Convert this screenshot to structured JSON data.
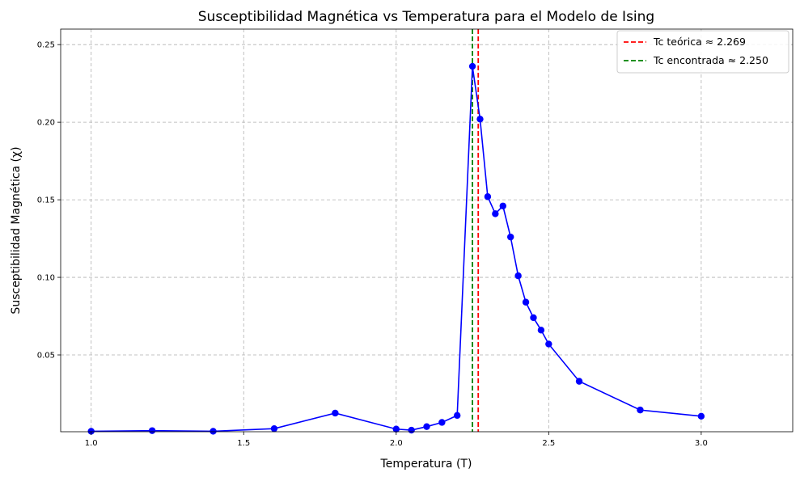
{
  "chart_data": {
    "type": "line",
    "title": "Susceptibilidad Magnética vs Temperatura para el Modelo de Ising",
    "xlabel": "Temperatura (T)",
    "ylabel": "Susceptibilidad Magnética (χ)",
    "xlim": [
      0.9,
      3.3
    ],
    "ylim": [
      0.0005,
      0.26
    ],
    "xticks": [
      1.0,
      1.5,
      2.0,
      2.5,
      3.0
    ],
    "xtick_labels": [
      "1.0",
      "1.5",
      "2.0",
      "2.5",
      "3.0"
    ],
    "yticks": [
      0.05,
      0.1,
      0.15,
      0.2,
      0.25
    ],
    "ytick_labels": [
      "0.05",
      "0.10",
      "0.15",
      "0.20",
      "0.25"
    ],
    "grid": true,
    "legend_position": "top-right",
    "series": [
      {
        "color": "#0000ff",
        "marker": "circle",
        "x": [
          1.0,
          1.2,
          1.4,
          1.6,
          1.8,
          2.0,
          2.05,
          2.1,
          2.15,
          2.2,
          2.25,
          2.275,
          2.3,
          2.325,
          2.35,
          2.375,
          2.4,
          2.425,
          2.45,
          2.475,
          2.5,
          2.6,
          2.8,
          3.0
        ],
        "y": [
          0.0008,
          0.0012,
          0.0008,
          0.0025,
          0.0125,
          0.0022,
          0.0015,
          0.0038,
          0.0065,
          0.011,
          0.236,
          0.202,
          0.152,
          0.141,
          0.146,
          0.126,
          0.101,
          0.084,
          0.074,
          0.066,
          0.057,
          0.033,
          0.0145,
          0.0105
        ]
      }
    ],
    "vlines": [
      {
        "name": "Tc teórica ≈ 2.269",
        "x": 2.269,
        "color": "#ff0000",
        "style": "dashed"
      },
      {
        "name": "Tc encontrada ≈ 2.250",
        "x": 2.25,
        "color": "#008000",
        "style": "dashed"
      }
    ]
  }
}
